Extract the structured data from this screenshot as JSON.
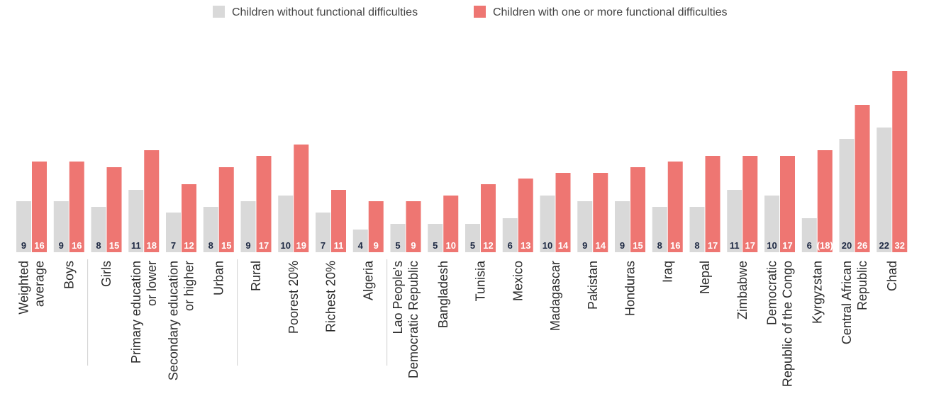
{
  "chart_data": {
    "type": "bar",
    "legend_position": "top-center",
    "grid": false,
    "ylim": [
      0,
      32
    ],
    "colors": {
      "without": "#d9d9d9",
      "with": "#ee7672",
      "label_dark": "#1f2a44",
      "label_light": "#ffffff",
      "separator": "#cfcfcf"
    },
    "series": [
      {
        "name": "Children without functional difficulties",
        "values": [
          9,
          9,
          8,
          11,
          7,
          8,
          9,
          10,
          7,
          4,
          5,
          5,
          5,
          6,
          10,
          9,
          9,
          8,
          8,
          11,
          10,
          6,
          20,
          22
        ],
        "labels": [
          "9",
          "9",
          "8",
          "11",
          "7",
          "8",
          "9",
          "10",
          "7",
          "4",
          "5",
          "5",
          "5",
          "6",
          "10",
          "9",
          "9",
          "8",
          "8",
          "11",
          "10",
          "6",
          "20",
          "22"
        ]
      },
      {
        "name": "Children with one or more functional difficulties",
        "values": [
          16,
          16,
          15,
          18,
          12,
          15,
          17,
          19,
          11,
          9,
          9,
          10,
          12,
          13,
          14,
          14,
          15,
          16,
          17,
          17,
          17,
          18,
          26,
          32
        ],
        "labels": [
          "16",
          "16",
          "15",
          "18",
          "12",
          "15",
          "17",
          "19",
          "11",
          "9",
          "9",
          "10",
          "12",
          "13",
          "14",
          "14",
          "15",
          "16",
          "17",
          "17",
          "17",
          "(18)",
          "26",
          "32"
        ]
      }
    ],
    "categories": [
      [
        "Weighted",
        "average"
      ],
      [
        "Boys"
      ],
      [
        "Girls"
      ],
      [
        "Primary education",
        "or lower"
      ],
      [
        "Secondary education",
        "or higher"
      ],
      [
        "Urban"
      ],
      [
        "Rural"
      ],
      [
        "Poorest 20%"
      ],
      [
        "Richest 20%"
      ],
      [
        "Algeria"
      ],
      [
        "Lao People's",
        "Democratic Republic"
      ],
      [
        "Bangladesh"
      ],
      [
        "Tunisia"
      ],
      [
        "Mexico"
      ],
      [
        "Madagascar"
      ],
      [
        "Pakistan"
      ],
      [
        "Honduras"
      ],
      [
        "Iraq"
      ],
      [
        "Nepal"
      ],
      [
        "Zimbabwe"
      ],
      [
        "Democratic",
        "Republic of the Congo"
      ],
      [
        "Kyrgyzstan"
      ],
      [
        "Central African",
        "Republic"
      ],
      [
        "Chad"
      ]
    ]
  }
}
